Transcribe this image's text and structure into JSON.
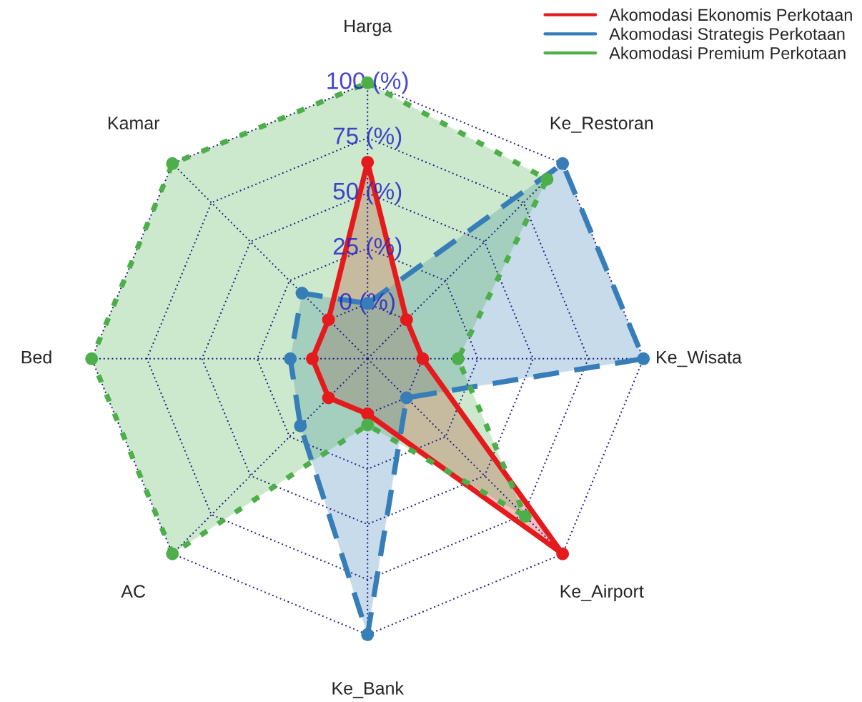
{
  "chart_data": {
    "type": "radar",
    "categories": [
      "Harga",
      "Ke_Restoran",
      "Ke_Wisata",
      "Ke_Airport",
      "Ke_Bank",
      "AC",
      "Bed",
      "Kamar"
    ],
    "series": [
      {
        "name": "Akomodasi Ekonomis Perkotaan",
        "color": "#e41a1c",
        "line_style": "solid",
        "values": [
          64,
          0,
          0,
          100,
          0,
          0,
          0,
          0
        ]
      },
      {
        "name": "Akomodasi Strategis Perkotaan",
        "color": "#377eb8",
        "line_style": "dashed",
        "values": [
          0,
          100,
          100,
          0,
          100,
          18,
          10,
          17
        ]
      },
      {
        "name": "Akomodasi Premium Perkotaan",
        "color": "#4daf4a",
        "line_style": "dotted",
        "values": [
          100,
          90,
          16,
          76,
          5,
          100,
          100,
          100
        ]
      }
    ],
    "ylim": [
      -25,
      100
    ],
    "yticks": [
      {
        "value": 0,
        "label": "0 (%)"
      },
      {
        "value": 25,
        "label": "25 (%)"
      },
      {
        "value": 50,
        "label": "50 (%)"
      },
      {
        "value": 75,
        "label": "75 (%)"
      },
      {
        "value": 100,
        "label": "100 (%)"
      }
    ],
    "grid": true,
    "legend": "top right",
    "marker": "circle"
  }
}
